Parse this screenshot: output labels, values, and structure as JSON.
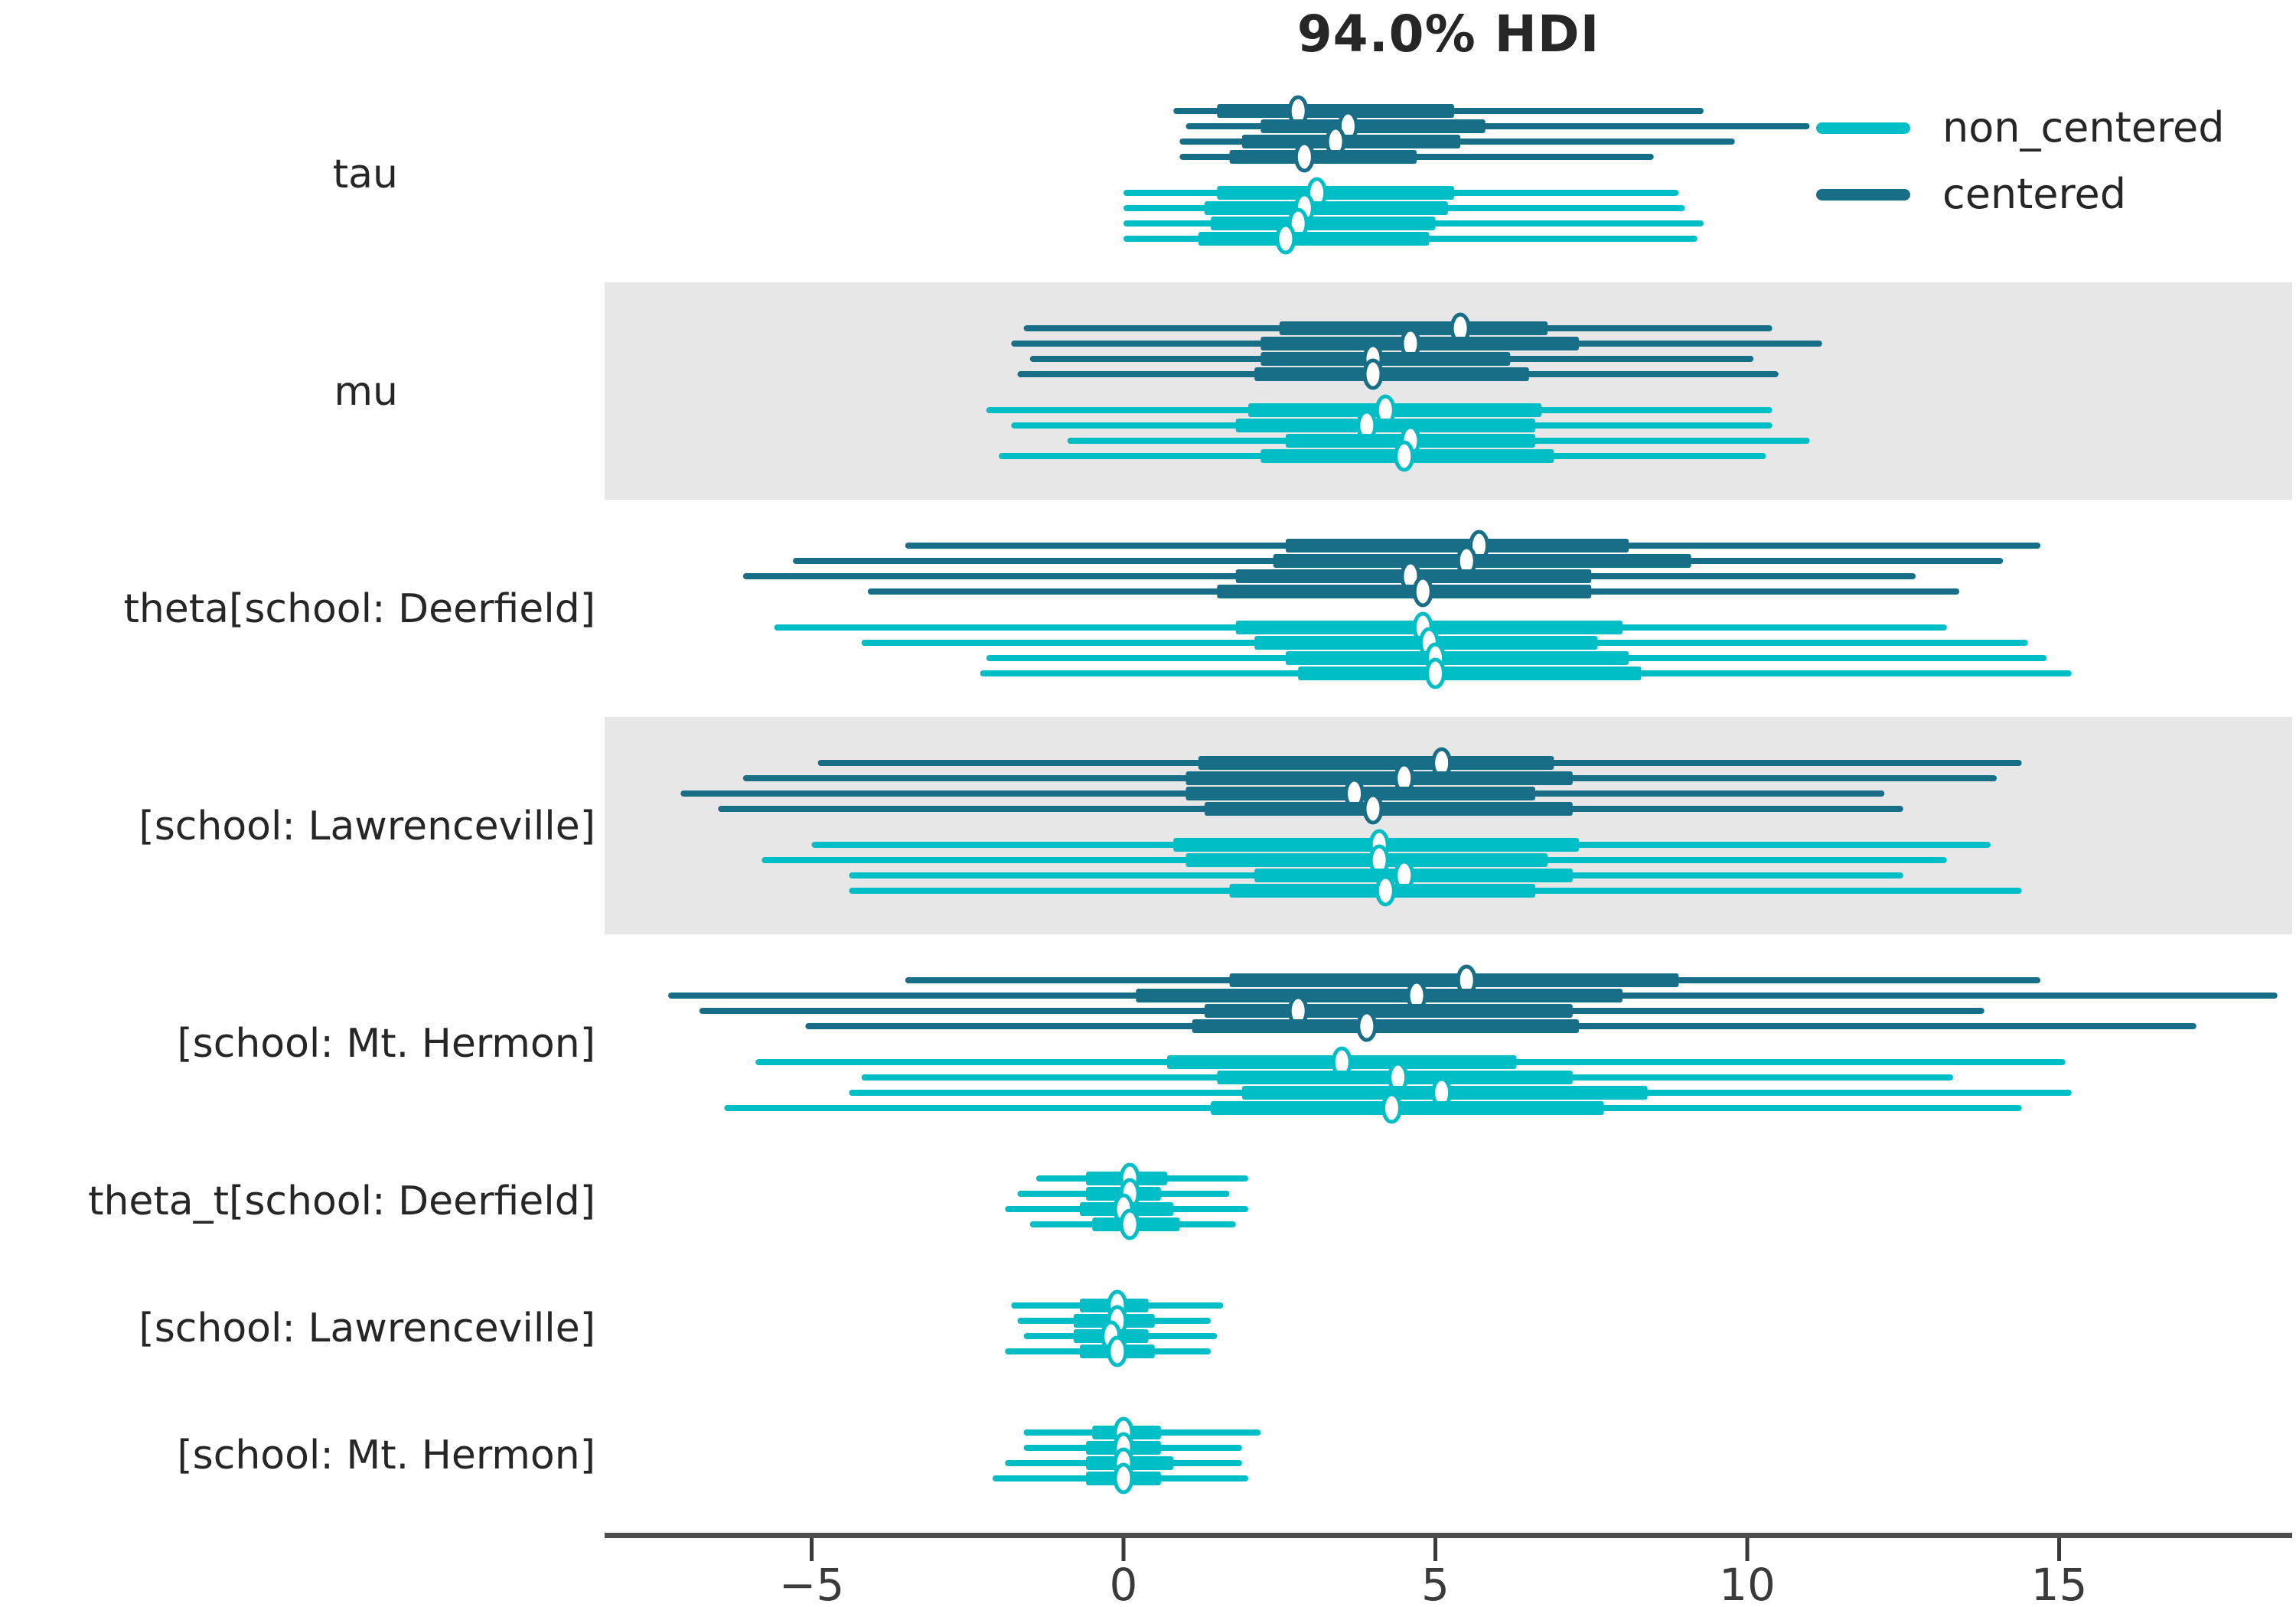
{
  "chart_data": {
    "type": "forest",
    "title": "94.0% HDI",
    "x_axis": {
      "ticks": [
        -5,
        0,
        5,
        10,
        15
      ],
      "tick_labels": [
        "−5",
        "0",
        "5",
        "10",
        "15"
      ],
      "xlim": [
        -8.3,
        18.7
      ]
    },
    "legend": {
      "position": "upper right",
      "entries": [
        {
          "label": "non_centered",
          "color": "#00bec6"
        },
        {
          "label": "centered",
          "color": "#186e87"
        }
      ]
    },
    "band_color": "#e7e7e7",
    "line_format": [
      "hdi_low",
      "quartile_low",
      "median",
      "quartile_high",
      "hdi_high"
    ],
    "rows": [
      {
        "label": "tau",
        "shaded": false,
        "series": [
          {
            "model": "centered",
            "lines": [
              [
                0.8,
                1.5,
                2.8,
                5.3,
                9.3
              ],
              [
                1.0,
                2.2,
                3.6,
                5.8,
                11.0
              ],
              [
                0.9,
                1.9,
                3.4,
                5.4,
                9.8
              ],
              [
                0.9,
                1.7,
                2.9,
                4.7,
                8.5
              ]
            ]
          },
          {
            "model": "non_centered",
            "lines": [
              [
                0.0,
                1.5,
                3.1,
                5.3,
                8.9
              ],
              [
                0.0,
                1.3,
                2.9,
                5.2,
                9.0
              ],
              [
                0.0,
                1.4,
                2.8,
                5.0,
                9.3
              ],
              [
                0.0,
                1.2,
                2.6,
                4.9,
                9.2
              ]
            ]
          }
        ]
      },
      {
        "label": "mu",
        "shaded": true,
        "series": [
          {
            "model": "centered",
            "lines": [
              [
                -1.6,
                2.5,
                5.4,
                6.8,
                10.4
              ],
              [
                -1.8,
                2.2,
                4.6,
                7.3,
                11.2
              ],
              [
                -1.5,
                2.2,
                4.0,
                6.2,
                10.1
              ],
              [
                -1.7,
                2.1,
                4.0,
                6.5,
                10.5
              ]
            ]
          },
          {
            "model": "non_centered",
            "lines": [
              [
                -2.2,
                2.0,
                4.2,
                6.7,
                10.4
              ],
              [
                -1.8,
                1.8,
                3.9,
                6.6,
                10.4
              ],
              [
                -0.9,
                2.6,
                4.6,
                6.6,
                11.0
              ],
              [
                -2.0,
                2.2,
                4.5,
                6.9,
                10.3
              ]
            ]
          }
        ]
      },
      {
        "label": "theta[school: Deerfield]",
        "shaded": false,
        "series": [
          {
            "model": "centered",
            "lines": [
              [
                -3.5,
                2.6,
                5.7,
                8.1,
                14.7
              ],
              [
                -5.3,
                2.4,
                5.5,
                9.1,
                14.1
              ],
              [
                -6.1,
                1.8,
                4.6,
                7.5,
                12.7
              ],
              [
                -4.1,
                1.5,
                4.8,
                7.5,
                13.4
              ]
            ]
          },
          {
            "model": "non_centered",
            "lines": [
              [
                -5.6,
                1.8,
                4.8,
                8.0,
                13.2
              ],
              [
                -4.2,
                2.1,
                4.9,
                7.6,
                14.5
              ],
              [
                -2.2,
                2.6,
                5.0,
                8.1,
                14.8
              ],
              [
                -2.3,
                2.8,
                5.0,
                8.3,
                15.2
              ]
            ]
          }
        ]
      },
      {
        "label": "[school: Lawrenceville]",
        "shaded": true,
        "series": [
          {
            "model": "centered",
            "lines": [
              [
                -4.9,
                1.2,
                5.1,
                6.9,
                14.4
              ],
              [
                -6.1,
                1.0,
                4.5,
                7.2,
                14.0
              ],
              [
                -7.1,
                1.0,
                3.7,
                6.6,
                12.2
              ],
              [
                -6.5,
                1.3,
                4.0,
                7.2,
                12.5
              ]
            ]
          },
          {
            "model": "non_centered",
            "lines": [
              [
                -5.0,
                0.8,
                4.1,
                7.3,
                13.9
              ],
              [
                -5.8,
                1.0,
                4.1,
                6.8,
                13.2
              ],
              [
                -4.4,
                2.1,
                4.5,
                7.2,
                12.5
              ],
              [
                -4.4,
                1.7,
                4.2,
                6.6,
                14.4
              ]
            ]
          }
        ]
      },
      {
        "label": "[school: Mt. Hermon]",
        "shaded": false,
        "series": [
          {
            "model": "centered",
            "lines": [
              [
                -3.5,
                1.7,
                5.5,
                8.9,
                14.7
              ],
              [
                -7.3,
                0.2,
                4.7,
                8.0,
                18.5
              ],
              [
                -6.8,
                1.3,
                2.8,
                7.2,
                13.8
              ],
              [
                -5.1,
                1.1,
                3.9,
                7.3,
                17.2
              ]
            ]
          },
          {
            "model": "non_centered",
            "lines": [
              [
                -5.9,
                0.7,
                3.5,
                6.3,
                15.1
              ],
              [
                -4.2,
                1.5,
                4.4,
                7.2,
                13.3
              ],
              [
                -4.4,
                1.9,
                5.1,
                8.4,
                15.2
              ],
              [
                -6.4,
                1.4,
                4.3,
                7.7,
                14.4
              ]
            ]
          }
        ]
      },
      {
        "label": "theta_t[school: Deerfield]",
        "shaded": false,
        "series": [
          {
            "model": "non_centered",
            "lines": [
              [
                -1.4,
                -0.6,
                0.1,
                0.7,
                2.0
              ],
              [
                -1.7,
                -0.6,
                0.1,
                0.6,
                1.7
              ],
              [
                -1.9,
                -0.7,
                0.0,
                0.8,
                2.0
              ],
              [
                -1.5,
                -0.5,
                0.1,
                0.9,
                1.8
              ]
            ]
          }
        ]
      },
      {
        "label": "[school: Lawrenceville]",
        "shaded": false,
        "series": [
          {
            "model": "non_centered",
            "lines": [
              [
                -1.8,
                -0.7,
                -0.1,
                0.4,
                1.6
              ],
              [
                -1.7,
                -0.8,
                -0.1,
                0.5,
                1.4
              ],
              [
                -1.6,
                -0.8,
                -0.2,
                0.4,
                1.5
              ],
              [
                -1.9,
                -0.7,
                -0.1,
                0.5,
                1.4
              ]
            ]
          }
        ]
      },
      {
        "label": "[school: Mt. Hermon]",
        "shaded": false,
        "series": [
          {
            "model": "non_centered",
            "lines": [
              [
                -1.6,
                -0.5,
                0.0,
                0.6,
                2.2
              ],
              [
                -1.6,
                -0.6,
                0.0,
                0.6,
                1.9
              ],
              [
                -1.9,
                -0.6,
                0.0,
                0.8,
                1.9
              ],
              [
                -2.1,
                -0.6,
                0.0,
                0.6,
                2.0
              ]
            ]
          }
        ]
      }
    ]
  }
}
